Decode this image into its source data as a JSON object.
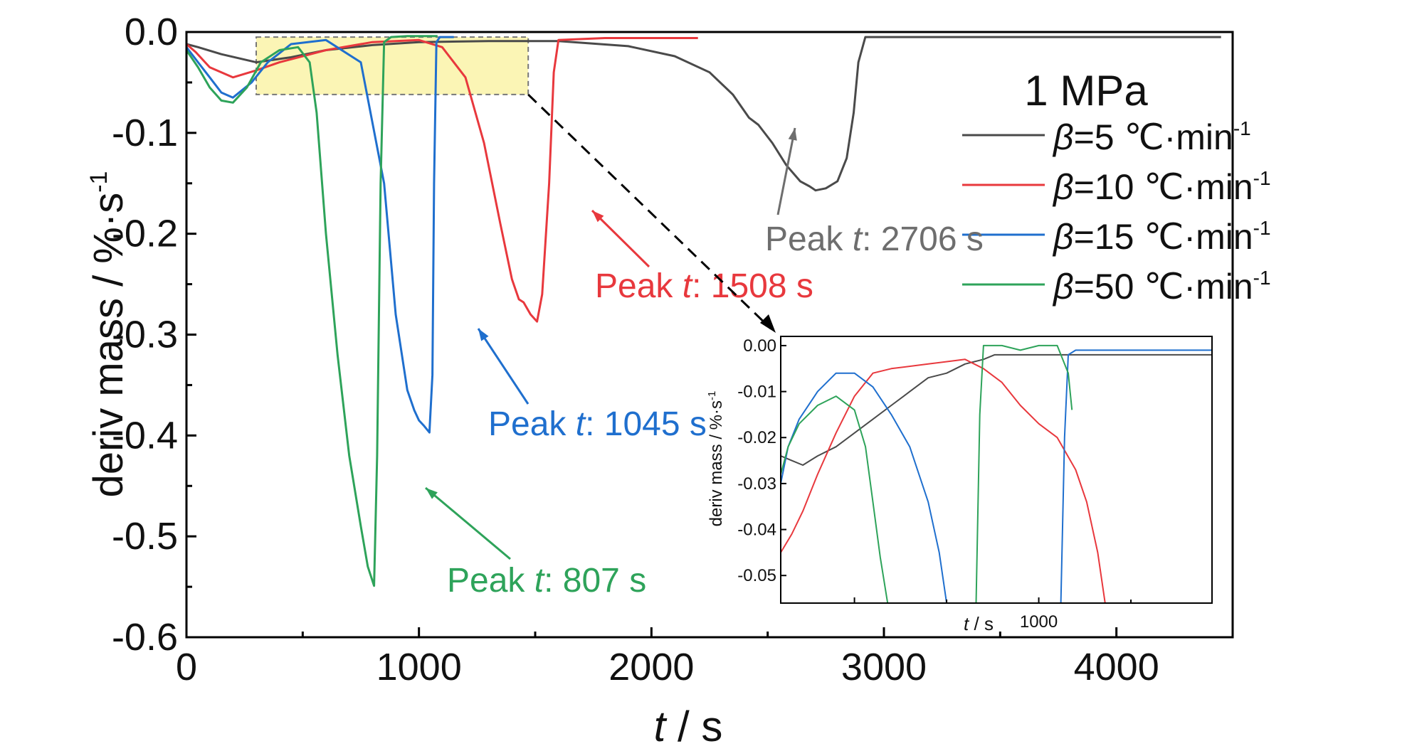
{
  "chart_data": [
    {
      "type": "line",
      "xlabel_var": "t",
      "xlabel_unit": " / s",
      "ylabel": "deriv mass / %·s",
      "ylabel_sup": "-1",
      "xlim": [
        0,
        4500
      ],
      "ylim": [
        -0.6,
        0.0
      ],
      "x_ticks": [
        0,
        1000,
        2000,
        3000,
        4000
      ],
      "x_tick_labels": [
        "0",
        "1000",
        "2000",
        "3000",
        "4000"
      ],
      "y_ticks": [
        0.0,
        -0.1,
        -0.2,
        -0.3,
        -0.4,
        -0.5,
        -0.6
      ],
      "y_tick_labels": [
        "0.0",
        "-0.1",
        "-0.2",
        "-0.3",
        "-0.4",
        "-0.5",
        "-0.6"
      ],
      "legend": {
        "title": "1 MPa",
        "position": "top-right",
        "prefix": "β",
        "units": "℃·min",
        "units_sup": "-1"
      },
      "series": [
        {
          "name": "=5",
          "color": "#4a4a4a",
          "x": [
            0,
            50,
            150,
            300,
            450,
            600,
            800,
            1000,
            1300,
            1600,
            1900,
            2100,
            2250,
            2350,
            2420,
            2460,
            2520,
            2580,
            2640,
            2680,
            2706,
            2750,
            2800,
            2840,
            2870,
            2890,
            2920,
            3000,
            3500,
            4000,
            4450
          ],
          "y": [
            -0.012,
            -0.015,
            -0.022,
            -0.03,
            -0.025,
            -0.018,
            -0.013,
            -0.01,
            -0.009,
            -0.009,
            -0.014,
            -0.024,
            -0.04,
            -0.062,
            -0.085,
            -0.092,
            -0.11,
            -0.132,
            -0.148,
            -0.153,
            -0.157,
            -0.155,
            -0.148,
            -0.125,
            -0.08,
            -0.03,
            -0.005,
            -0.005,
            -0.005,
            -0.005,
            -0.005
          ]
        },
        {
          "name": "=10",
          "color": "#e8383d",
          "x": [
            0,
            40,
            100,
            200,
            300,
            400,
            600,
            800,
            1000,
            1100,
            1200,
            1280,
            1350,
            1400,
            1430,
            1450,
            1480,
            1508,
            1530,
            1560,
            1580,
            1600,
            1800,
            2000,
            2200
          ],
          "y": [
            -0.012,
            -0.02,
            -0.035,
            -0.045,
            -0.038,
            -0.03,
            -0.018,
            -0.01,
            -0.008,
            -0.015,
            -0.045,
            -0.11,
            -0.19,
            -0.245,
            -0.265,
            -0.268,
            -0.28,
            -0.287,
            -0.26,
            -0.15,
            -0.04,
            -0.008,
            -0.006,
            -0.006,
            -0.006
          ]
        },
        {
          "name": "=15",
          "color": "#1f6fce",
          "x": [
            0,
            50,
            100,
            150,
            200,
            280,
            350,
            450,
            600,
            750,
            850,
            900,
            950,
            980,
            1000,
            1020,
            1045,
            1058,
            1065,
            1075,
            1090,
            1150
          ],
          "y": [
            -0.015,
            -0.03,
            -0.045,
            -0.06,
            -0.065,
            -0.05,
            -0.03,
            -0.012,
            -0.008,
            -0.03,
            -0.15,
            -0.28,
            -0.355,
            -0.375,
            -0.385,
            -0.39,
            -0.397,
            -0.34,
            -0.15,
            -0.01,
            -0.005,
            -0.005
          ]
        },
        {
          "name": "=50",
          "color": "#2ea35a",
          "x": [
            0,
            50,
            100,
            150,
            200,
            260,
            320,
            400,
            480,
            530,
            560,
            600,
            650,
            700,
            750,
            780,
            807,
            820,
            835,
            850,
            880,
            950,
            1000,
            1080
          ],
          "y": [
            -0.018,
            -0.035,
            -0.055,
            -0.068,
            -0.07,
            -0.055,
            -0.03,
            -0.018,
            -0.015,
            -0.03,
            -0.08,
            -0.2,
            -0.32,
            -0.42,
            -0.49,
            -0.53,
            -0.549,
            -0.42,
            -0.15,
            -0.01,
            -0.005,
            -0.004,
            -0.004,
            -0.004
          ]
        }
      ],
      "annotations": [
        {
          "prefix": "Peak ",
          "var": "t",
          "value": ": 2706 s",
          "color": "#6e6e6e"
        },
        {
          "prefix": "Peak ",
          "var": "t",
          "value": ": 1508 s",
          "color": "#e8383d"
        },
        {
          "prefix": "Peak ",
          "var": "t",
          "value": ": 1045 s",
          "color": "#1f6fce"
        },
        {
          "prefix": "Peak ",
          "var": "t",
          "value": ": 807 s",
          "color": "#2ea35a"
        }
      ],
      "highlight_box": {
        "x_range": [
          300,
          1470
        ],
        "y_range": [
          -0.062,
          -0.005
        ],
        "fill": "#fbf5b5"
      }
    },
    {
      "type": "line",
      "role": "inset",
      "xlabel_var": "t",
      "xlabel_unit": " / s",
      "ylabel": "deriv mass / %·s",
      "ylabel_sup": "-1",
      "xlim": [
        300,
        1470
      ],
      "ylim": [
        -0.056,
        0.002
      ],
      "x_ticks": [
        500,
        1000
      ],
      "x_tick_labels": [
        "",
        "1000"
      ],
      "y_ticks": [
        0.0,
        -0.01,
        -0.02,
        -0.03,
        -0.04,
        -0.05
      ],
      "y_tick_labels": [
        "0.00",
        "-0.01",
        "-0.02",
        "-0.03",
        "-0.04",
        "-0.05"
      ],
      "series": [
        {
          "name": "=5",
          "color": "#4a4a4a",
          "x": [
            300,
            330,
            360,
            400,
            450,
            500,
            550,
            600,
            650,
            700,
            750,
            800,
            850,
            880,
            920,
            1000,
            1100,
            1200,
            1300,
            1470
          ],
          "y": [
            -0.024,
            -0.025,
            -0.026,
            -0.024,
            -0.022,
            -0.019,
            -0.016,
            -0.013,
            -0.01,
            -0.007,
            -0.006,
            -0.004,
            -0.003,
            -0.002,
            -0.002,
            -0.002,
            -0.002,
            -0.002,
            -0.002,
            -0.002
          ]
        },
        {
          "name": "=10",
          "color": "#e8383d",
          "x": [
            300,
            330,
            360,
            400,
            450,
            500,
            550,
            600,
            700,
            800,
            850,
            900,
            950,
            1000,
            1050,
            1100,
            1130,
            1160,
            1180
          ],
          "y": [
            -0.045,
            -0.041,
            -0.036,
            -0.028,
            -0.019,
            -0.011,
            -0.006,
            -0.005,
            -0.004,
            -0.003,
            -0.005,
            -0.008,
            -0.013,
            -0.017,
            -0.02,
            -0.027,
            -0.034,
            -0.045,
            -0.056
          ]
        },
        {
          "name": "=15",
          "color": "#1f6fce",
          "x": [
            300,
            320,
            350,
            400,
            450,
            500,
            550,
            600,
            650,
            700,
            730,
            750,
            780,
            1000,
            1060,
            1070,
            1080,
            1100,
            1200,
            1300,
            1470
          ],
          "y": [
            -0.03,
            -0.022,
            -0.016,
            -0.01,
            -0.006,
            -0.006,
            -0.009,
            -0.015,
            -0.022,
            -0.034,
            -0.045,
            -0.056,
            -0.056,
            -0.056,
            -0.056,
            -0.02,
            -0.002,
            -0.001,
            -0.001,
            -0.001,
            -0.001
          ]
        },
        {
          "name": "=50",
          "color": "#2ea35a",
          "x": [
            300,
            320,
            350,
            400,
            450,
            500,
            530,
            550,
            570,
            590,
            600,
            800,
            830,
            840,
            850,
            900,
            950,
            1000,
            1050,
            1080,
            1090
          ],
          "y": [
            -0.028,
            -0.022,
            -0.017,
            -0.013,
            -0.011,
            -0.014,
            -0.022,
            -0.034,
            -0.046,
            -0.056,
            -0.056,
            -0.056,
            -0.056,
            -0.015,
            0.0,
            0.0,
            -0.001,
            0.0,
            0.0,
            -0.006,
            -0.014
          ]
        }
      ]
    }
  ]
}
